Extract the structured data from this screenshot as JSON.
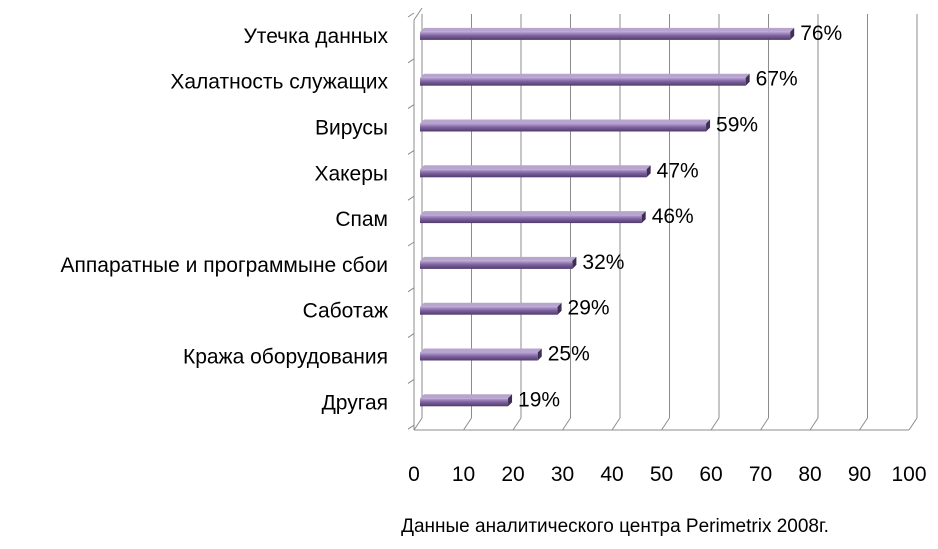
{
  "chart_data": {
    "type": "bar",
    "orientation": "horizontal",
    "categories": [
      "Утечка данных",
      "Халатность служащих",
      "Вирусы",
      "Хакеры",
      "Спам",
      "Аппаратные и программыне сбои",
      "Саботаж",
      "Кража оборудования",
      "Другая"
    ],
    "values": [
      76,
      67,
      59,
      47,
      46,
      32,
      29,
      25,
      19
    ],
    "data_labels": [
      "76%",
      "67%",
      "59%",
      "47%",
      "46%",
      "32%",
      "29%",
      "25%",
      "19%"
    ],
    "xlim": [
      0,
      100
    ],
    "x_ticks": [
      "0",
      "10",
      "20",
      "30",
      "40",
      "50",
      "60",
      "70",
      "80",
      "90",
      "100"
    ],
    "grid": "vertical",
    "legend": "none",
    "bar_color": "#8064a2",
    "caption": "Данные аналитического центра Perimetrix 2008г."
  }
}
